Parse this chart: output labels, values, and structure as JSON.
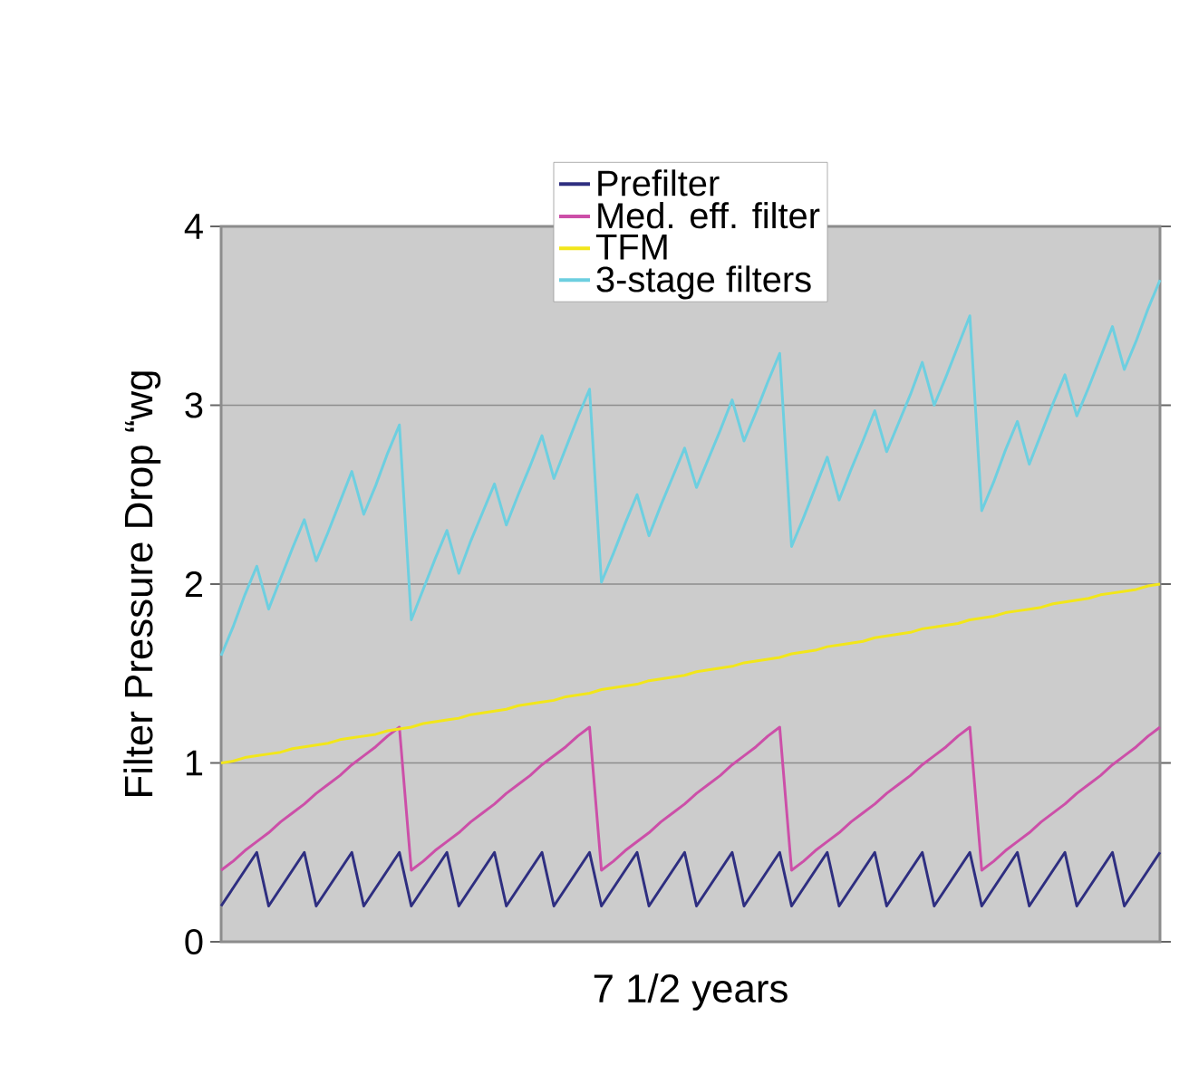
{
  "chart_data": {
    "type": "line",
    "xlabel": "7 1/2 years",
    "ylabel": "Filter Pressure Drop “wg",
    "categories": [
      null,
      null,
      null,
      null,
      null,
      null,
      null,
      null,
      null,
      null,
      null,
      null,
      null,
      null,
      null,
      null,
      null,
      null,
      null,
      null,
      null,
      null,
      null,
      null,
      null,
      null,
      null,
      null,
      null,
      null,
      null,
      null,
      null,
      null,
      null,
      null,
      null,
      null,
      null,
      null,
      null,
      null,
      null,
      null,
      null,
      null,
      null,
      null,
      null,
      null,
      null,
      null,
      null,
      null,
      null,
      null,
      null,
      null,
      null,
      null,
      null,
      null,
      null,
      null,
      null,
      null,
      null,
      null,
      null,
      null,
      null,
      null,
      null,
      null,
      null,
      null,
      null,
      null,
      null,
      null
    ],
    "series": [
      {
        "name": "Prefilter",
        "color": "#2e2e80",
        "values": [
          0.2,
          0.3,
          0.4,
          0.5,
          0.2,
          0.3,
          0.4,
          0.5,
          0.2,
          0.3,
          0.4,
          0.5,
          0.2,
          0.3,
          0.4,
          0.5,
          0.2,
          0.3,
          0.4,
          0.5,
          0.2,
          0.3,
          0.4,
          0.5,
          0.2,
          0.3,
          0.4,
          0.5,
          0.2,
          0.3,
          0.4,
          0.5,
          0.2,
          0.3,
          0.4,
          0.5,
          0.2,
          0.3,
          0.4,
          0.5,
          0.2,
          0.3,
          0.4,
          0.5,
          0.2,
          0.3,
          0.4,
          0.5,
          0.2,
          0.3,
          0.4,
          0.5,
          0.2,
          0.3,
          0.4,
          0.5,
          0.2,
          0.3,
          0.4,
          0.5,
          0.2,
          0.3,
          0.4,
          0.5,
          0.2,
          0.3,
          0.4,
          0.5,
          0.2,
          0.3,
          0.4,
          0.5,
          0.2,
          0.3,
          0.4,
          0.5,
          0.2,
          0.3,
          0.4,
          0.5
        ]
      },
      {
        "name": "Med. eff. filter",
        "color": "#cc4fa8",
        "values": [
          0.4,
          0.45,
          0.51,
          0.56,
          0.61,
          0.67,
          0.72,
          0.77,
          0.83,
          0.88,
          0.93,
          0.99,
          1.04,
          1.09,
          1.15,
          1.2,
          0.4,
          0.45,
          0.51,
          0.56,
          0.61,
          0.67,
          0.72,
          0.77,
          0.83,
          0.88,
          0.93,
          0.99,
          1.04,
          1.09,
          1.15,
          1.2,
          0.4,
          0.45,
          0.51,
          0.56,
          0.61,
          0.67,
          0.72,
          0.77,
          0.83,
          0.88,
          0.93,
          0.99,
          1.04,
          1.09,
          1.15,
          1.2,
          0.4,
          0.45,
          0.51,
          0.56,
          0.61,
          0.67,
          0.72,
          0.77,
          0.83,
          0.88,
          0.93,
          0.99,
          1.04,
          1.09,
          1.15,
          1.2,
          0.4,
          0.45,
          0.51,
          0.56,
          0.61,
          0.67,
          0.72,
          0.77,
          0.83,
          0.88,
          0.93,
          0.99,
          1.04,
          1.09,
          1.15,
          1.2
        ]
      },
      {
        "name": "TFM",
        "color": "#f2e61a",
        "values": [
          1.0,
          1.01,
          1.03,
          1.04,
          1.05,
          1.06,
          1.08,
          1.09,
          1.1,
          1.11,
          1.13,
          1.14,
          1.15,
          1.16,
          1.18,
          1.19,
          1.2,
          1.22,
          1.23,
          1.24,
          1.25,
          1.27,
          1.28,
          1.29,
          1.3,
          1.32,
          1.33,
          1.34,
          1.35,
          1.37,
          1.38,
          1.39,
          1.41,
          1.42,
          1.43,
          1.44,
          1.46,
          1.47,
          1.48,
          1.49,
          1.51,
          1.52,
          1.53,
          1.54,
          1.56,
          1.57,
          1.58,
          1.59,
          1.61,
          1.62,
          1.63,
          1.65,
          1.66,
          1.67,
          1.68,
          1.7,
          1.71,
          1.72,
          1.73,
          1.75,
          1.76,
          1.77,
          1.78,
          1.8,
          1.81,
          1.82,
          1.84,
          1.85,
          1.86,
          1.87,
          1.89,
          1.9,
          1.91,
          1.92,
          1.94,
          1.95,
          1.96,
          1.97,
          1.99,
          2.0
        ]
      },
      {
        "name": "3-stage filters",
        "color": "#6dcfe0",
        "values": [
          1.6,
          1.76,
          1.94,
          2.1,
          1.86,
          2.03,
          2.2,
          2.36,
          2.13,
          2.29,
          2.46,
          2.63,
          2.39,
          2.55,
          2.73,
          2.89,
          1.8,
          1.97,
          2.14,
          2.3,
          2.06,
          2.24,
          2.4,
          2.56,
          2.33,
          2.5,
          2.66,
          2.83,
          2.59,
          2.76,
          2.93,
          3.09,
          2.01,
          2.17,
          2.34,
          2.5,
          2.27,
          2.44,
          2.6,
          2.76,
          2.54,
          2.7,
          2.86,
          3.03,
          2.8,
          2.96,
          3.13,
          3.29,
          2.21,
          2.37,
          2.54,
          2.71,
          2.47,
          2.64,
          2.8,
          2.97,
          2.74,
          2.9,
          3.06,
          3.24,
          3.0,
          3.16,
          3.33,
          3.5,
          2.41,
          2.57,
          2.75,
          2.91,
          2.67,
          2.84,
          3.01,
          3.17,
          2.94,
          3.1,
          3.27,
          3.44,
          3.2,
          3.36,
          3.54,
          3.7
        ]
      }
    ],
    "ylim": [
      0,
      4
    ],
    "yticks": [
      0,
      1,
      2,
      3,
      4
    ],
    "tick_labels": "y",
    "grid": "y",
    "legend": "top",
    "marker": "none",
    "line_style": "solid"
  }
}
